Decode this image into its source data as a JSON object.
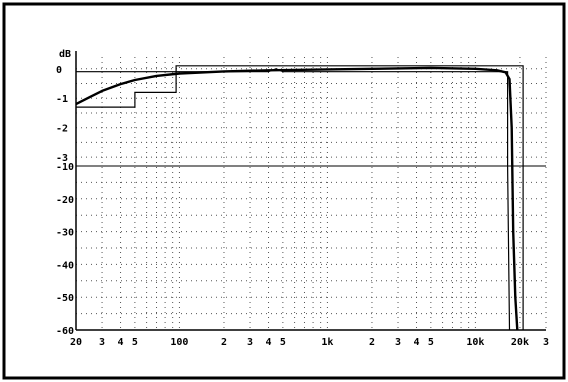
{
  "chart_data": {
    "type": "line",
    "ylabel": "dB",
    "x_scale": "log",
    "x_tick_labels": [
      {
        "x": 20,
        "label": "20"
      },
      {
        "x": 30,
        "label": "3"
      },
      {
        "x": 40,
        "label": "4"
      },
      {
        "x": 50,
        "label": "5"
      },
      {
        "x": 100,
        "label": "100"
      },
      {
        "x": 200,
        "label": "2"
      },
      {
        "x": 300,
        "label": "3"
      },
      {
        "x": 400,
        "label": "4"
      },
      {
        "x": 500,
        "label": "5"
      },
      {
        "x": 1000,
        "label": "1k"
      },
      {
        "x": 2000,
        "label": "2"
      },
      {
        "x": 3000,
        "label": "3"
      },
      {
        "x": 4000,
        "label": "4"
      },
      {
        "x": 5000,
        "label": "5"
      },
      {
        "x": 10000,
        "label": "10k"
      },
      {
        "x": 20000,
        "label": "20k"
      },
      {
        "x": 30000,
        "label": "3"
      }
    ],
    "y_top_labels": [
      {
        "y": 0,
        "label": "0"
      },
      {
        "y": -1,
        "label": "-1"
      },
      {
        "y": -2,
        "label": "-2"
      },
      {
        "y": -3,
        "label": "-3"
      }
    ],
    "y_bottom_labels": [
      {
        "y": -10,
        "label": "-10"
      },
      {
        "y": -20,
        "label": "-20"
      },
      {
        "y": -30,
        "label": "-30"
      },
      {
        "y": -40,
        "label": "-40"
      },
      {
        "y": -50,
        "label": "-50"
      },
      {
        "y": -60,
        "label": "-60"
      }
    ],
    "top_section_ylim": [
      -3.3,
      0.4
    ],
    "bottom_section_ylim": [
      -60,
      -10
    ],
    "xlim": [
      20,
      30000
    ],
    "grid": true,
    "series": [
      {
        "values": [
          [
            20,
            -1.2
          ],
          [
            25,
            -0.95
          ],
          [
            30,
            -0.75
          ],
          [
            40,
            -0.52
          ],
          [
            50,
            -0.38
          ],
          [
            70,
            -0.24
          ],
          [
            100,
            -0.16
          ],
          [
            200,
            -0.09
          ],
          [
            400,
            -0.05
          ],
          [
            1000,
            -0.02
          ],
          [
            2000,
            0.0
          ],
          [
            5000,
            0.03
          ],
          [
            10000,
            0.0
          ],
          [
            14000,
            -0.05
          ],
          [
            16000,
            -0.12
          ],
          [
            17000,
            -0.35
          ],
          [
            17600,
            -2.0
          ],
          [
            18000,
            -30
          ],
          [
            18600,
            -50
          ],
          [
            19200,
            -60
          ]
        ]
      }
    ],
    "template": {
      "upper": [
        [
          20,
          -1.3
        ],
        [
          50,
          -1.3
        ],
        [
          50,
          -0.8
        ],
        [
          95,
          -0.8
        ],
        [
          95,
          0.1
        ],
        [
          21000,
          0.1
        ],
        [
          21000,
          -60
        ]
      ],
      "lower": [
        [
          20,
          -0.1
        ],
        [
          400,
          -0.1
        ],
        [
          450,
          0
        ],
        [
          500,
          -0.1
        ],
        [
          16500,
          -0.1
        ],
        [
          16500,
          -3.3
        ],
        [
          17000,
          -60
        ]
      ]
    }
  }
}
